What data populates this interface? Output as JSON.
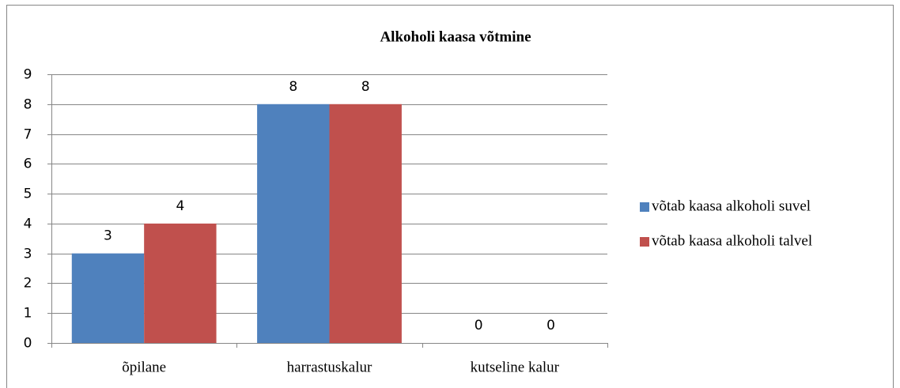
{
  "chart_data": {
    "type": "bar",
    "title": "Alkoholi kaasa võtmine",
    "categories": [
      "õpilane",
      "harrastuskalur",
      "kutseline kalur"
    ],
    "series": [
      {
        "name": "võtab kaasa alkoholi suvel",
        "color": "#4f81bd",
        "values": [
          3,
          8,
          0
        ]
      },
      {
        "name": "võtab kaasa alkoholi talvel",
        "color": "#c0504d",
        "values": [
          4,
          8,
          0
        ]
      }
    ],
    "ylim": [
      0,
      9
    ],
    "yticks": [
      0,
      1,
      2,
      3,
      4,
      5,
      6,
      7,
      8,
      9
    ],
    "grid": true,
    "legend": "right"
  }
}
